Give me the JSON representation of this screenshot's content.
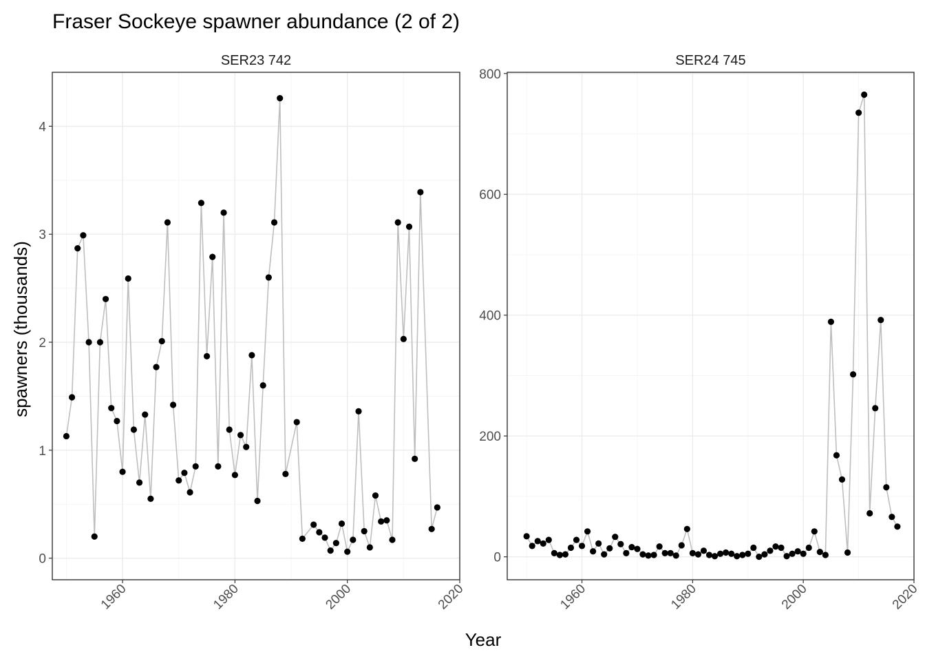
{
  "chart_data": {
    "type": "line",
    "title": "Fraser Sockeye spawner abundance (2 of 2)",
    "xlabel": "Year",
    "ylabel": "spawners (thousands)",
    "colors": {
      "line": "#bebebe",
      "point": "#000000",
      "grid": "#ebebeb",
      "border": "#333333"
    },
    "panels": [
      {
        "name": "SER23 742",
        "xlim": [
          1947.5,
          2020
        ],
        "ylim": [
          -0.2,
          4.5
        ],
        "x_ticks": [
          1960,
          1980,
          2000,
          2020
        ],
        "x_tick_labels": [
          "1960",
          "1980",
          "2000",
          "2020"
        ],
        "y_ticks": [
          0,
          1,
          2,
          3,
          4
        ],
        "y_tick_labels": [
          "0",
          "1",
          "2",
          "3",
          "4"
        ],
        "x_minor": [
          1950,
          1970,
          1990,
          2010
        ],
        "y_minor": [
          0.5,
          1.5,
          2.5,
          3.5
        ],
        "x": [
          1950,
          1951,
          1952,
          1953,
          1954,
          1955,
          1956,
          1957,
          1958,
          1959,
          1960,
          1961,
          1962,
          1963,
          1964,
          1965,
          1966,
          1967,
          1968,
          1969,
          1970,
          1971,
          1972,
          1973,
          1974,
          1975,
          1976,
          1977,
          1978,
          1979,
          1980,
          1981,
          1982,
          1983,
          1984,
          1985,
          1986,
          1987,
          1988,
          1989,
          1991,
          1992,
          1994,
          1995,
          1996,
          1997,
          1998,
          1999,
          2000,
          2001,
          2002,
          2003,
          2004,
          2005,
          2006,
          2007,
          2008,
          2009,
          2010,
          2011,
          2012,
          2013,
          2015,
          2016
        ],
        "y": [
          1.13,
          1.49,
          2.87,
          2.99,
          2.0,
          0.2,
          2.0,
          2.4,
          1.39,
          1.27,
          0.8,
          2.59,
          1.19,
          0.7,
          1.33,
          0.55,
          1.77,
          2.01,
          3.11,
          1.42,
          0.72,
          0.79,
          0.61,
          0.85,
          3.29,
          1.87,
          2.79,
          0.85,
          3.2,
          1.19,
          0.77,
          1.14,
          1.03,
          1.88,
          0.53,
          1.6,
          2.6,
          3.11,
          4.26,
          0.78,
          1.26,
          0.18,
          0.31,
          0.24,
          0.19,
          0.07,
          0.14,
          0.32,
          0.06,
          0.17,
          1.36,
          0.25,
          0.1,
          0.58,
          0.34,
          0.35,
          0.17,
          3.11,
          2.03,
          3.07,
          0.92,
          3.39,
          0.27,
          0.47
        ]
      },
      {
        "name": "SER24 745",
        "xlim": [
          1946.5,
          2020
        ],
        "ylim": [
          -38,
          802
        ],
        "x_ticks": [
          1960,
          1980,
          2000,
          2020
        ],
        "x_tick_labels": [
          "1960",
          "1980",
          "2000",
          "2020"
        ],
        "y_ticks": [
          0,
          200,
          400,
          600,
          800
        ],
        "y_tick_labels": [
          "0",
          "200",
          "400",
          "600",
          "800"
        ],
        "x_minor": [
          1950,
          1970,
          1990,
          2010
        ],
        "y_minor": [
          100,
          300,
          500,
          700
        ],
        "x": [
          1950,
          1951,
          1952,
          1953,
          1954,
          1955,
          1956,
          1957,
          1958,
          1959,
          1960,
          1961,
          1962,
          1963,
          1964,
          1965,
          1966,
          1967,
          1968,
          1969,
          1970,
          1971,
          1972,
          1973,
          1974,
          1975,
          1976,
          1977,
          1978,
          1979,
          1980,
          1981,
          1982,
          1983,
          1984,
          1985,
          1986,
          1987,
          1988,
          1989,
          1990,
          1991,
          1992,
          1993,
          1994,
          1995,
          1996,
          1997,
          1998,
          1999,
          2000,
          2001,
          2002,
          2003,
          2004,
          2005,
          2006,
          2007,
          2008,
          2009,
          2010,
          2011,
          2012,
          2013,
          2014,
          2015,
          2016,
          2017
        ],
        "y": [
          34,
          18,
          26,
          22,
          28,
          6,
          3,
          4,
          15,
          28,
          18,
          42,
          9,
          22,
          4,
          14,
          33,
          21,
          6,
          16,
          13,
          4,
          2,
          3,
          17,
          6,
          6,
          2,
          19,
          46,
          6,
          4,
          10,
          3,
          1,
          5,
          7,
          5,
          1,
          3,
          5,
          15,
          0,
          4,
          10,
          17,
          15,
          1,
          5,
          9,
          5,
          15,
          42,
          8,
          3,
          389,
          168,
          128,
          7,
          302,
          735,
          765,
          72,
          246,
          392,
          115,
          66,
          50
        ]
      }
    ]
  }
}
